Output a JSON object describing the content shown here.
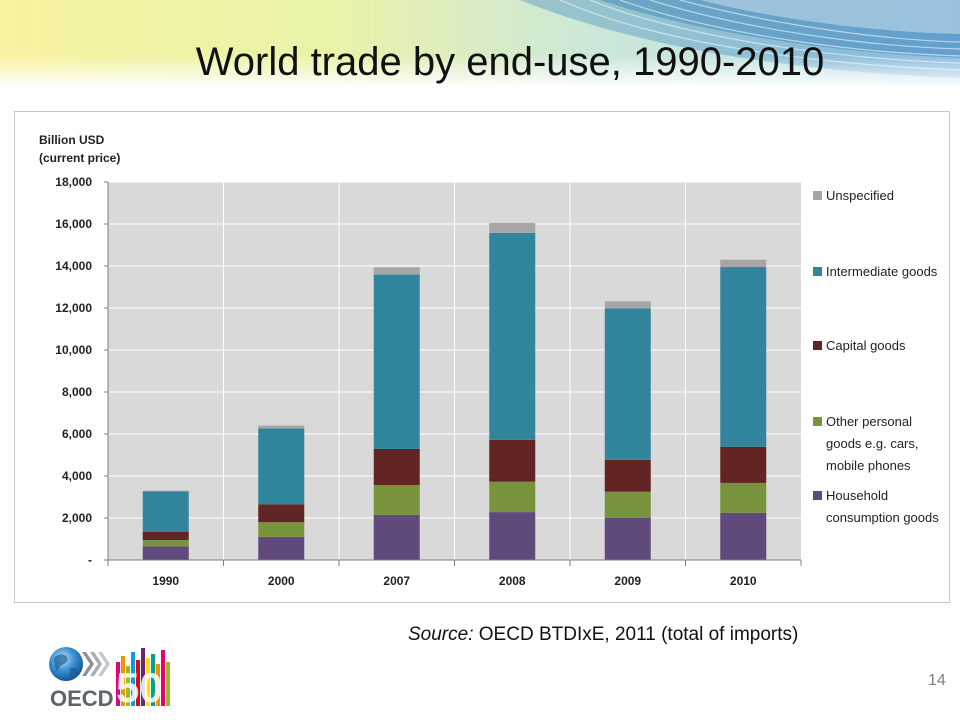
{
  "slide": {
    "title": "World trade by end-use, 1990-2010",
    "source_label": "Source:",
    "source_text": "OECD BTDIxE,  2011 (total of imports)",
    "page_number": "14",
    "logo_text": "OECD",
    "logo_mark": "50"
  },
  "chart_data": {
    "type": "bar",
    "stacked": true,
    "ylabel_lines": [
      "Billion USD",
      "(current price)"
    ],
    "ylim": [
      0,
      18000
    ],
    "yticks": [
      0,
      2000,
      4000,
      6000,
      8000,
      10000,
      12000,
      14000,
      16000,
      18000
    ],
    "ytick_labels": [
      "-",
      "2,000",
      "4,000",
      "6,000",
      "8,000",
      "10,000",
      "12,000",
      "14,000",
      "16,000",
      "18,000"
    ],
    "categories": [
      "1990",
      "2000",
      "2007",
      "2008",
      "2009",
      "2010"
    ],
    "grid": true,
    "legend_position": "right",
    "series": [
      {
        "name": "Household consumption goods",
        "color": "#604a7b",
        "values": [
          650,
          1100,
          2150,
          2280,
          2000,
          2250
        ]
      },
      {
        "name": "Other personal goods e.g. cars, mobile phones",
        "color": "#77933c",
        "values": [
          300,
          700,
          1420,
          1450,
          1250,
          1420
        ]
      },
      {
        "name": "Capital goods",
        "color": "#632523",
        "values": [
          400,
          850,
          1720,
          1990,
          1520,
          1720
        ]
      },
      {
        "name": "Intermediate goods",
        "color": "#31859c",
        "values": [
          1920,
          3620,
          8300,
          9860,
          7220,
          8560
        ]
      },
      {
        "name": "Unspecified",
        "color": "#a6a6a6",
        "values": [
          30,
          130,
          350,
          470,
          330,
          350
        ]
      }
    ],
    "legend_order": [
      "Unspecified",
      "Intermediate goods",
      "Capital goods",
      "Other personal goods e.g. cars, mobile phones",
      "Household consumption goods"
    ],
    "legend_lines": {
      "Unspecified": [
        "Unspecified"
      ],
      "Intermediate goods": [
        "Intermediate goods"
      ],
      "Capital goods": [
        "Capital goods"
      ],
      "Other personal goods e.g. cars, mobile phones": [
        "Other personal",
        "goods e.g. cars,",
        "mobile phones"
      ],
      "Household consumption goods": [
        "Household",
        "consumption goods"
      ]
    }
  }
}
